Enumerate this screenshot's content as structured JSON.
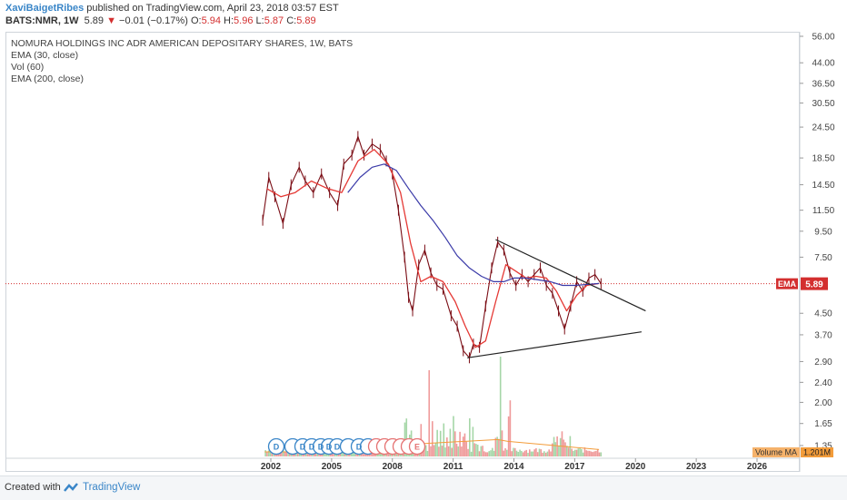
{
  "header": {
    "author": "XaviBaigetRibes",
    "published": " published on TradingView.com, April 23, 2018 03:57 EST",
    "symbol": "BATS:NMR, 1W",
    "last": "5.89",
    "change": "−0.01 (−0.17%)",
    "o_label": "O:",
    "o": "5.94",
    "h_label": "H:",
    "h": "5.96",
    "l_label": "L:",
    "l": "5.87",
    "c_label": "C:",
    "c": "5.89"
  },
  "legend": [
    "NOMURA HOLDINGS INC ADR AMERICAN DEPOSITARY SHARES, 1W, BATS",
    "EMA (30, close)",
    "Vol (60)",
    "EMA (200, close)"
  ],
  "price_labels": {
    "ema": "EMA",
    "last": "5.89",
    "vol": "Volume MA",
    "vol_value": "1.201M"
  },
  "footer": {
    "created": "Created with",
    "brand": "TradingView"
  },
  "colors": {
    "price": "#7a0c14",
    "ema30": "#e53935",
    "ema200": "#3a3aa8",
    "trendline": "#222222",
    "last_line": "#d32f2f",
    "volume_up": "#a5d6a7",
    "volume_down": "#ef9a9a",
    "vol_ma": "#f39c3a",
    "events": "#3a86c8",
    "events_e": "#e57373"
  },
  "chart_data": {
    "type": "line",
    "title": "NOMURA HOLDINGS INC ADR AMERICAN DEPOSITARY SHARES, 1W, BATS",
    "y_scale": "log",
    "y_ticks": [
      "56.00",
      "44.00",
      "36.50",
      "30.50",
      "24.50",
      "18.50",
      "14.50",
      "11.50",
      "9.50",
      "7.50",
      "5.89",
      "4.50",
      "3.70",
      "2.90",
      "2.40",
      "2.00",
      "1.65",
      "1.35"
    ],
    "x_ticks": [
      "2002",
      "2005",
      "2008",
      "2011",
      "2014",
      "2017",
      "2020",
      "2023",
      "2026"
    ],
    "last_price": 5.89,
    "grid": false,
    "series": [
      {
        "name": "",
        "role": "price",
        "x": [
          2001.6,
          2001.9,
          2002.2,
          2002.6,
          2003.0,
          2003.4,
          2003.7,
          2004.1,
          2004.5,
          2004.9,
          2005.3,
          2005.6,
          2006.0,
          2006.3,
          2006.6,
          2007.0,
          2007.4,
          2007.7,
          2008.0,
          2008.3,
          2008.6,
          2008.8,
          2009.0,
          2009.3,
          2009.6,
          2009.9,
          2010.2,
          2010.5,
          2010.9,
          2011.2,
          2011.5,
          2011.8,
          2012.0,
          2012.3,
          2012.6,
          2012.9,
          2013.2,
          2013.5,
          2013.8,
          2014.1,
          2014.4,
          2014.7,
          2015.0,
          2015.3,
          2015.6,
          2015.9,
          2016.2,
          2016.5,
          2016.8,
          2017.1,
          2017.4,
          2017.7,
          2018.0,
          2018.3
        ],
        "values": [
          10.5,
          15.5,
          13.0,
          10.2,
          14.5,
          17.0,
          15.0,
          13.5,
          16.0,
          13.5,
          12.0,
          17.5,
          19.0,
          22.5,
          19.0,
          21.0,
          20.0,
          18.0,
          16.0,
          11.5,
          7.5,
          5.2,
          4.6,
          7.0,
          8.0,
          6.5,
          5.8,
          5.6,
          4.4,
          4.0,
          3.2,
          3.0,
          3.4,
          3.3,
          4.8,
          6.8,
          8.6,
          8.0,
          6.5,
          5.8,
          6.4,
          6.0,
          6.4,
          6.8,
          5.8,
          5.4,
          4.6,
          3.9,
          4.8,
          6.0,
          5.5,
          6.2,
          6.4,
          5.89
        ]
      },
      {
        "name": "EMA (30, close)",
        "role": "ema30",
        "x": [
          2001.8,
          2002.5,
          2003.2,
          2004.0,
          2004.8,
          2005.5,
          2006.3,
          2007.1,
          2007.8,
          2008.4,
          2008.9,
          2009.4,
          2009.9,
          2010.5,
          2011.1,
          2011.6,
          2012.1,
          2012.6,
          2013.1,
          2013.6,
          2014.1,
          2014.6,
          2015.1,
          2015.6,
          2016.1,
          2016.6,
          2017.1,
          2017.6,
          2018.2
        ],
        "values": [
          14.0,
          13.0,
          13.5,
          15.0,
          14.0,
          13.5,
          18.0,
          20.0,
          17.5,
          13.5,
          8.5,
          6.0,
          6.3,
          6.0,
          5.0,
          4.0,
          3.3,
          3.5,
          5.0,
          7.0,
          6.6,
          6.2,
          6.3,
          6.2,
          5.5,
          4.6,
          5.3,
          5.8,
          5.9
        ]
      },
      {
        "name": "EMA (200, close)",
        "role": "ema200",
        "x": [
          2005.8,
          2006.4,
          2007.0,
          2007.6,
          2008.2,
          2008.8,
          2009.4,
          2010.0,
          2010.6,
          2011.2,
          2011.8,
          2012.4,
          2013.0,
          2013.5,
          2014.0,
          2014.6,
          2015.2,
          2015.8,
          2016.4,
          2017.0,
          2017.6,
          2018.2
        ],
        "values": [
          13.5,
          15.5,
          17.0,
          17.5,
          16.5,
          14.0,
          12.0,
          10.5,
          9.0,
          7.6,
          6.8,
          6.3,
          6.0,
          6.0,
          6.2,
          6.2,
          6.1,
          6.0,
          5.8,
          5.8,
          5.85,
          5.9
        ]
      },
      {
        "name": "",
        "role": "trendline-upper",
        "x": [
          2013.1,
          2020.5
        ],
        "values": [
          8.8,
          4.6
        ]
      },
      {
        "name": "",
        "role": "trendline-lower",
        "x": [
          2011.7,
          2020.3
        ],
        "values": [
          3.0,
          3.8
        ]
      }
    ],
    "volume": {
      "label": "Volume MA",
      "last": "1.201M"
    },
    "events": [
      "D",
      "D",
      "D",
      "D",
      "D",
      "D",
      "D",
      "D",
      "D",
      "D",
      "D",
      "D",
      "D",
      "D",
      "D",
      "D",
      "D",
      "D",
      "D",
      "D",
      "E"
    ]
  }
}
